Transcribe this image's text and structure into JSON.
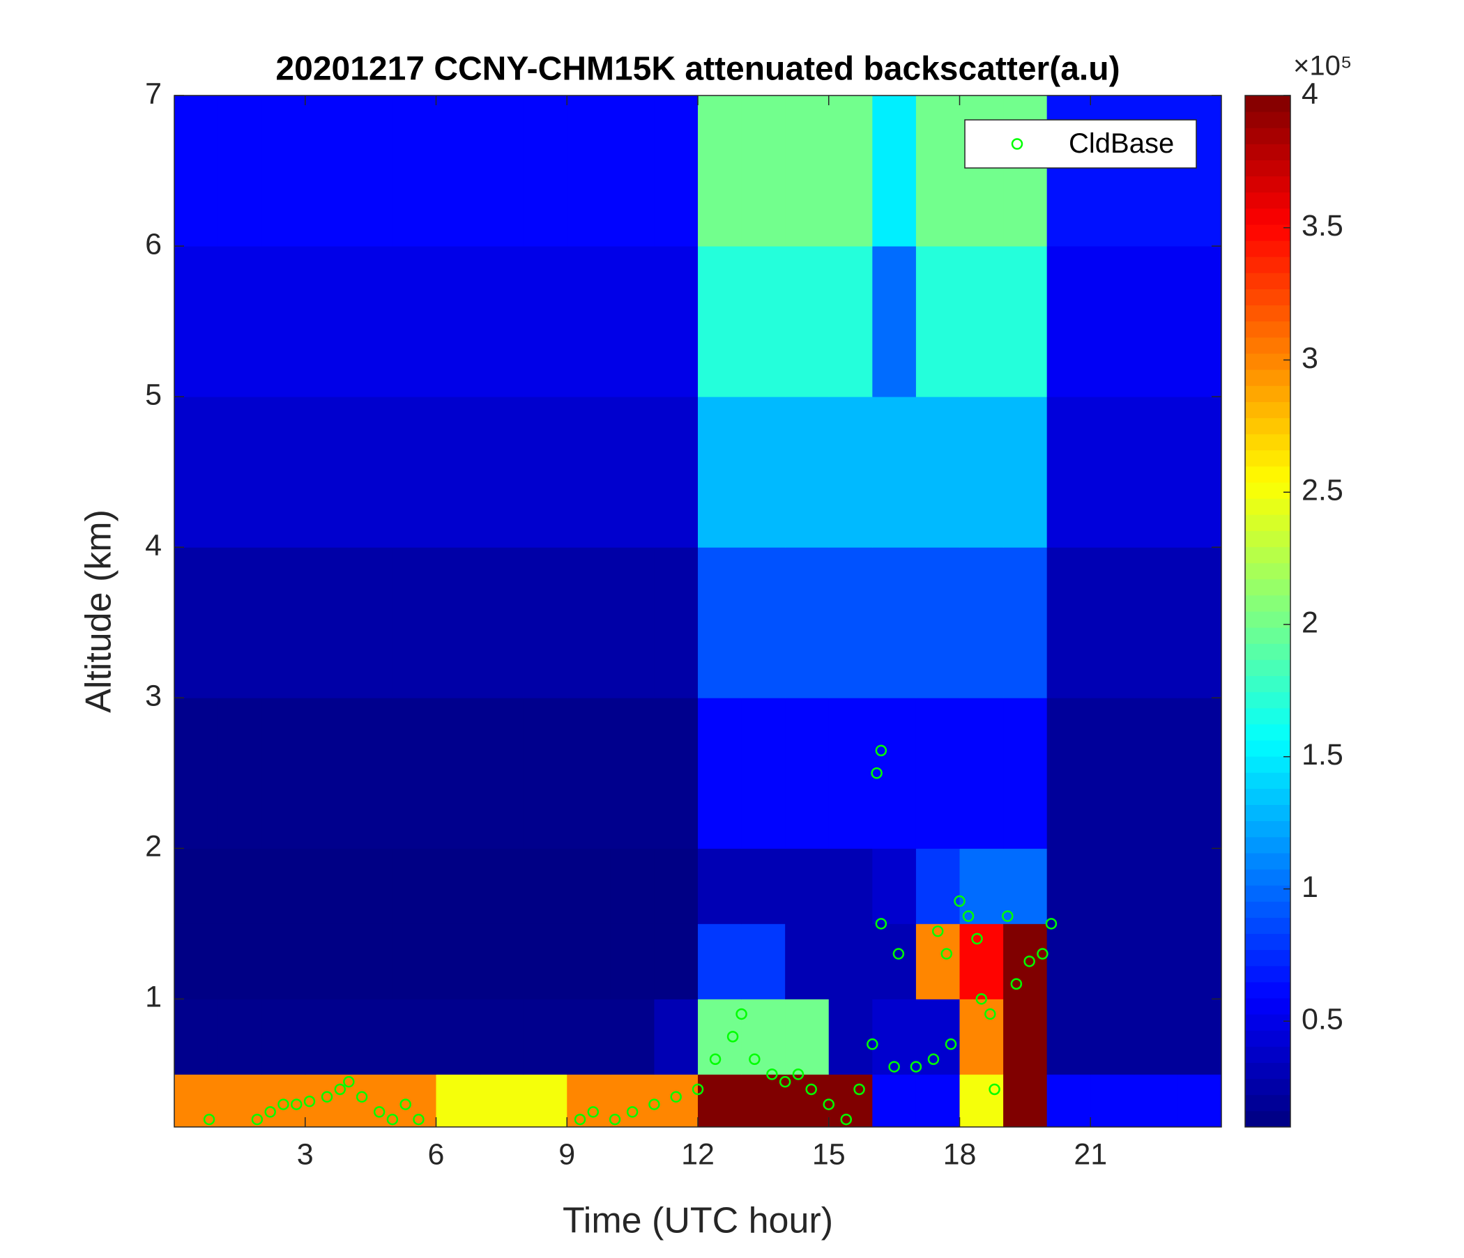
{
  "chart_data": {
    "type": "heatmap",
    "title": "20201217 CCNY-CHM15K attenuated backscatter(a.u)",
    "x_label": "Time (UTC hour)",
    "y_label": "Altitude (km)",
    "xlim": [
      0,
      24
    ],
    "xticks": [
      3,
      6,
      9,
      12,
      15,
      18,
      21
    ],
    "ylim": [
      0.15,
      7
    ],
    "yticks": [
      1,
      2,
      3,
      4,
      5,
      6,
      7
    ],
    "x_edges": [
      0,
      1,
      2,
      3,
      4,
      5,
      6,
      7,
      8,
      9,
      10,
      11,
      12,
      13,
      14,
      15,
      16,
      17,
      18,
      19,
      20,
      21,
      22,
      23,
      24
    ],
    "y_edges": [
      0.15,
      0.5,
      1,
      1.5,
      2,
      3,
      4,
      5,
      6,
      7
    ],
    "z": [
      [
        300000,
        300000,
        300000,
        300000,
        300000,
        300000,
        250000,
        250000,
        250000,
        300000,
        300000,
        300000,
        400000,
        400000,
        400000,
        400000,
        60000,
        60000,
        250000,
        400000,
        60000,
        60000,
        60000,
        60000
      ],
      [
        15000,
        15000,
        15000,
        15000,
        15000,
        15000,
        15000,
        15000,
        15000,
        15000,
        15000,
        30000,
        200000,
        200000,
        200000,
        30000,
        40000,
        40000,
        300000,
        400000,
        20000,
        20000,
        20000,
        20000
      ],
      [
        12000,
        12000,
        12000,
        12000,
        12000,
        12000,
        12000,
        12000,
        12000,
        12000,
        12000,
        12000,
        80000,
        80000,
        30000,
        30000,
        30000,
        300000,
        350000,
        400000,
        20000,
        20000,
        20000,
        20000
      ],
      [
        12000,
        12000,
        12000,
        12000,
        12000,
        12000,
        12000,
        12000,
        12000,
        12000,
        12000,
        12000,
        30000,
        30000,
        30000,
        30000,
        40000,
        80000,
        100000,
        100000,
        20000,
        20000,
        20000,
        20000
      ],
      [
        15000,
        15000,
        15000,
        15000,
        15000,
        15000,
        15000,
        15000,
        15000,
        15000,
        15000,
        15000,
        60000,
        60000,
        60000,
        60000,
        60000,
        60000,
        60000,
        60000,
        20000,
        20000,
        20000,
        20000
      ],
      [
        25000,
        25000,
        25000,
        25000,
        25000,
        25000,
        25000,
        25000,
        25000,
        25000,
        25000,
        25000,
        90000,
        90000,
        90000,
        90000,
        90000,
        90000,
        90000,
        90000,
        30000,
        30000,
        30000,
        30000
      ],
      [
        40000,
        40000,
        40000,
        40000,
        40000,
        40000,
        40000,
        40000,
        40000,
        40000,
        40000,
        40000,
        130000,
        130000,
        130000,
        130000,
        130000,
        130000,
        130000,
        130000,
        45000,
        45000,
        45000,
        45000
      ],
      [
        50000,
        50000,
        50000,
        50000,
        50000,
        50000,
        50000,
        50000,
        50000,
        50000,
        50000,
        50000,
        170000,
        170000,
        170000,
        170000,
        100000,
        170000,
        170000,
        170000,
        55000,
        55000,
        55000,
        55000
      ],
      [
        60000,
        60000,
        60000,
        60000,
        60000,
        60000,
        60000,
        60000,
        60000,
        60000,
        60000,
        60000,
        200000,
        200000,
        200000,
        200000,
        150000,
        200000,
        200000,
        200000,
        65000,
        65000,
        65000,
        65000
      ]
    ],
    "clim": [
      10000,
      400000
    ],
    "cticks": [
      {
        "value": 50000,
        "label": "0.5"
      },
      {
        "value": 100000,
        "label": "1"
      },
      {
        "value": 150000,
        "label": "1.5"
      },
      {
        "value": 200000,
        "label": "2"
      },
      {
        "value": 250000,
        "label": "2.5"
      },
      {
        "value": 300000,
        "label": "3"
      },
      {
        "value": 350000,
        "label": "3.5"
      },
      {
        "value": 400000,
        "label": "4"
      }
    ],
    "colorbar_multiplier": "×10⁵",
    "colormap": "jet",
    "legend_position": "ne",
    "series": [
      {
        "name": "CldBase",
        "color": "#00ff00",
        "x": [
          0.8,
          1.9,
          2.2,
          2.5,
          2.8,
          3.1,
          3.5,
          3.8,
          4.0,
          4.3,
          4.7,
          5.0,
          5.3,
          5.6,
          9.3,
          9.6,
          10.1,
          10.5,
          11.0,
          11.5,
          12.0,
          12.4,
          12.8,
          13.0,
          13.3,
          13.7,
          14.0,
          14.3,
          14.6,
          15.0,
          15.4,
          15.7,
          16.0,
          16.1,
          16.2,
          16.2,
          16.6,
          16.5,
          17.0,
          17.4,
          17.5,
          17.7,
          17.8,
          18.0,
          18.2,
          18.4,
          18.5,
          18.7,
          18.8,
          19.1,
          19.3,
          19.6,
          19.9,
          20.1
        ],
        "values": [
          0.2,
          0.2,
          0.25,
          0.3,
          0.3,
          0.32,
          0.35,
          0.4,
          0.45,
          0.35,
          0.25,
          0.2,
          0.3,
          0.2,
          0.2,
          0.25,
          0.2,
          0.25,
          0.3,
          0.35,
          0.4,
          0.6,
          0.75,
          0.9,
          0.6,
          0.5,
          0.45,
          0.5,
          0.4,
          0.3,
          0.2,
          0.4,
          0.7,
          2.5,
          2.65,
          1.5,
          1.3,
          0.55,
          0.55,
          0.6,
          1.45,
          1.3,
          0.7,
          1.65,
          1.55,
          1.4,
          1.0,
          0.9,
          0.4,
          1.55,
          1.1,
          1.25,
          1.3,
          1.5
        ]
      }
    ]
  }
}
